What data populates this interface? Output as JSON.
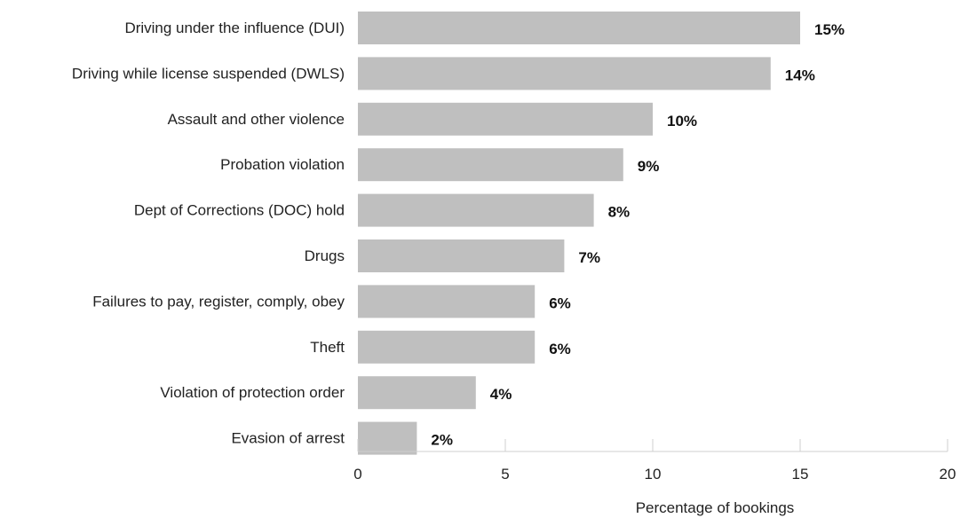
{
  "chart_data": {
    "type": "bar",
    "orientation": "horizontal",
    "title": "",
    "xlabel": "Percentage of bookings",
    "ylabel": "",
    "xlim": [
      0,
      20
    ],
    "xticks": [
      0,
      5,
      10,
      15,
      20
    ],
    "grid": false,
    "bar_color": "#bfbfbf",
    "categories": [
      "Driving under the influence (DUI)",
      "Driving while license suspended (DWLS)",
      "Assault and other violence",
      "Probation violation",
      "Dept of Corrections (DOC) hold",
      "Drugs",
      "Failures to pay, register, comply, obey",
      "Theft",
      "Violation of protection order",
      "Evasion of arrest"
    ],
    "values": [
      15,
      14,
      10,
      9,
      8,
      7,
      6,
      6,
      4,
      2
    ],
    "data_labels": [
      "15%",
      "14%",
      "10%",
      "9%",
      "8%",
      "7%",
      "6%",
      "6%",
      "4%",
      "2%"
    ]
  }
}
